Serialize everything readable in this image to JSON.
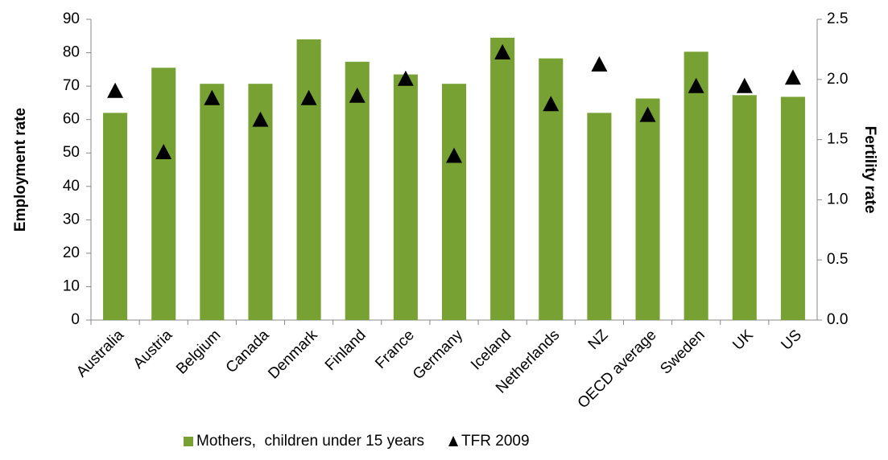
{
  "chart_data": {
    "type": "bar",
    "y_label": "Employment rate",
    "y2_label": "Fertility rate",
    "categories": [
      "Australia",
      "Austria",
      "Belgium",
      "Canada",
      "Denmark",
      "Finland",
      "France",
      "Germany",
      "Iceland",
      "Netherlands",
      "NZ",
      "OECD average",
      "Sweden",
      "UK",
      "US"
    ],
    "series": [
      {
        "name": "Mothers,  children under 15 years",
        "color": "#77a233",
        "type": "bar",
        "values": [
          62,
          75.5,
          70.7,
          70.7,
          84,
          77.3,
          73.5,
          70.7,
          84.5,
          78.3,
          62,
          66.3,
          80.3,
          67.3,
          66.8
        ]
      },
      {
        "name": "TFR 2009",
        "color": "#000000",
        "type": "triangle",
        "axis": "y2",
        "values": [
          1.9,
          1.39,
          1.84,
          1.66,
          1.84,
          1.86,
          2.0,
          1.36,
          2.22,
          1.79,
          2.12,
          1.7,
          1.94,
          1.94,
          2.01
        ]
      }
    ],
    "ylim": [
      0,
      90
    ],
    "yticks": [
      0,
      10,
      20,
      30,
      40,
      50,
      60,
      70,
      80,
      90
    ],
    "y2lim": [
      0,
      2.5
    ],
    "y2ticks": [
      {
        "value": 0,
        "label": "0.0"
      },
      {
        "value": 0.5,
        "label": "0.5"
      },
      {
        "value": 1,
        "label": "1.0"
      },
      {
        "value": 1.5,
        "label": "1.5"
      },
      {
        "value": 2,
        "label": "2.0"
      },
      {
        "value": 2.5,
        "label": "2.5"
      }
    ],
    "legend": "bottom"
  }
}
